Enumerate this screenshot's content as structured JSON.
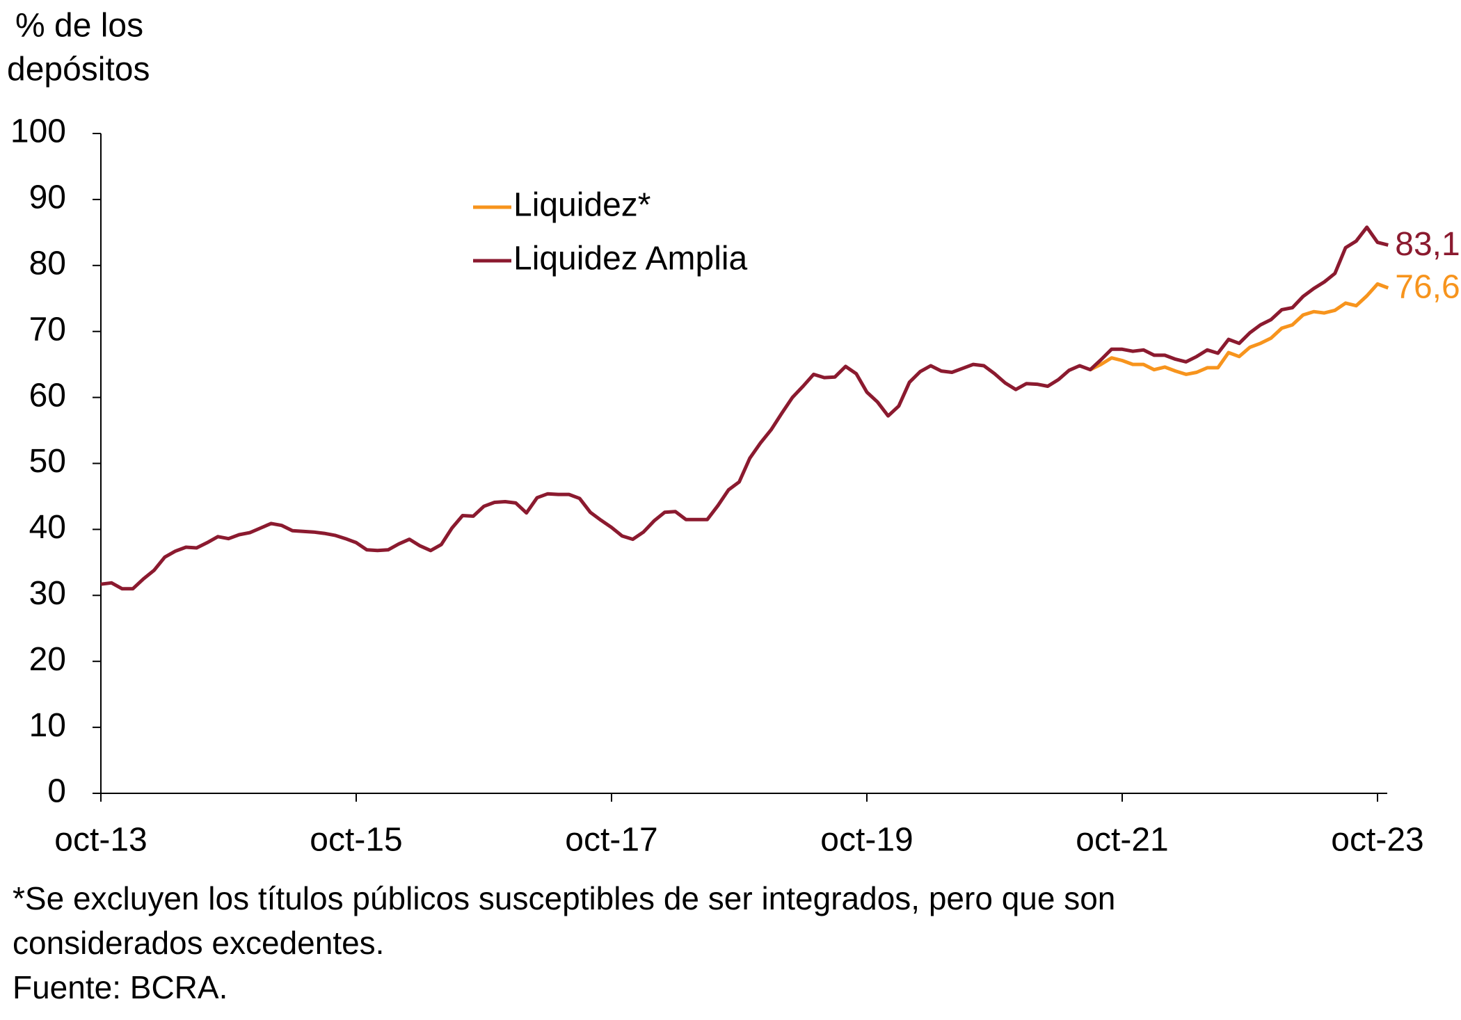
{
  "chart_data": {
    "type": "line",
    "ylabel": [
      "%  de los",
      "depósitos"
    ],
    "categories": [
      "oct-13",
      null,
      null,
      null,
      null,
      null,
      null,
      null,
      null,
      null,
      null,
      null,
      null,
      null,
      null,
      null,
      null,
      null,
      null,
      null,
      null,
      null,
      null,
      null,
      "oct-15",
      null,
      null,
      null,
      null,
      null,
      null,
      null,
      null,
      null,
      null,
      null,
      null,
      null,
      null,
      null,
      null,
      null,
      null,
      null,
      null,
      null,
      null,
      null,
      "oct-17",
      null,
      null,
      null,
      null,
      null,
      null,
      null,
      null,
      null,
      null,
      null,
      null,
      null,
      null,
      null,
      null,
      null,
      null,
      null,
      null,
      null,
      null,
      null,
      "oct-19",
      null,
      null,
      null,
      null,
      null,
      null,
      null,
      null,
      null,
      null,
      null,
      null,
      null,
      null,
      null,
      null,
      null,
      null,
      null,
      null,
      null,
      null,
      null,
      "oct-21",
      null,
      null,
      null,
      null,
      null,
      null,
      null,
      null,
      null,
      null,
      null,
      null,
      null,
      null,
      null,
      null,
      null,
      null,
      null,
      null,
      null,
      null,
      null,
      "oct-23",
      null
    ],
    "series": [
      {
        "name": "Liquidez*",
        "color": "#f7941d",
        "values": [
          null,
          null,
          null,
          null,
          null,
          null,
          null,
          null,
          null,
          null,
          null,
          null,
          null,
          null,
          null,
          null,
          null,
          null,
          null,
          null,
          null,
          null,
          null,
          null,
          null,
          null,
          null,
          null,
          null,
          null,
          null,
          null,
          null,
          null,
          null,
          null,
          null,
          null,
          null,
          null,
          null,
          null,
          null,
          null,
          null,
          null,
          null,
          null,
          null,
          null,
          null,
          null,
          null,
          null,
          null,
          null,
          null,
          null,
          null,
          null,
          null,
          null,
          null,
          null,
          null,
          null,
          null,
          null,
          null,
          null,
          null,
          null,
          null,
          null,
          null,
          null,
          null,
          null,
          null,
          null,
          null,
          null,
          null,
          null,
          null,
          null,
          null,
          null,
          null,
          null,
          null,
          null,
          null,
          64.2,
          65.0,
          66.0,
          65.6,
          65.0,
          65.0,
          64.2,
          64.6,
          64.0,
          63.5,
          63.8,
          64.5,
          64.5,
          66.8,
          66.2,
          67.6,
          68.2,
          69.0,
          70.5,
          71.0,
          72.5,
          73.0,
          72.8,
          73.2,
          74.3,
          73.9,
          75.4,
          77.2,
          76.6
        ],
        "value_labels": [
          null,
          null,
          null,
          null,
          null,
          null,
          null,
          null,
          null,
          null,
          null,
          null,
          null,
          null,
          null,
          null,
          null,
          null,
          null,
          null,
          null,
          null,
          null,
          null,
          null,
          null,
          null,
          null,
          null,
          null,
          null,
          null,
          null,
          null,
          null,
          null,
          null,
          null,
          null,
          null,
          null,
          null,
          null,
          null,
          null,
          null,
          null,
          null,
          null,
          null,
          null,
          null,
          null,
          null,
          null,
          null,
          null,
          null,
          null,
          null,
          null,
          null,
          null,
          null,
          null,
          null,
          null,
          null,
          null,
          null,
          null,
          null,
          null,
          null,
          null,
          null,
          null,
          null,
          null,
          null,
          null,
          null,
          null,
          null,
          null,
          null,
          null,
          null,
          null,
          null,
          null,
          null,
          null,
          null,
          null,
          null,
          null,
          null,
          null,
          null,
          null,
          null,
          null,
          null,
          null,
          null,
          null,
          null,
          null,
          null,
          null,
          null,
          null,
          null,
          null,
          null,
          null,
          null,
          null,
          null,
          null,
          "76,6"
        ]
      },
      {
        "name": "Liquidez Amplia",
        "color": "#8b1a2f",
        "values": [
          31.7,
          31.9,
          31.0,
          31.0,
          32.5,
          33.8,
          35.8,
          36.7,
          37.3,
          37.2,
          38.0,
          38.9,
          38.6,
          39.2,
          39.5,
          40.2,
          40.9,
          40.6,
          39.8,
          39.7,
          39.6,
          39.4,
          39.1,
          38.6,
          38.0,
          36.9,
          36.8,
          36.9,
          37.8,
          38.5,
          37.5,
          36.8,
          37.7,
          40.2,
          42.1,
          42.0,
          43.5,
          44.1,
          44.2,
          44.0,
          42.5,
          44.8,
          45.4,
          45.3,
          45.3,
          44.7,
          42.6,
          41.4,
          40.3,
          39.0,
          38.5,
          39.6,
          41.3,
          42.6,
          42.7,
          41.5,
          41.5,
          41.5,
          43.6,
          46.0,
          47.2,
          50.8,
          53.1,
          55.1,
          57.6,
          60.0,
          61.7,
          63.5,
          63.0,
          63.1,
          64.7,
          63.6,
          60.8,
          59.3,
          57.2,
          58.7,
          62.3,
          63.9,
          64.8,
          64.0,
          63.8,
          64.4,
          65.0,
          64.8,
          63.6,
          62.2,
          61.2,
          62.1,
          62.0,
          61.7,
          62.7,
          64.1,
          64.8,
          64.2,
          65.7,
          67.3,
          67.3,
          67.0,
          67.2,
          66.4,
          66.4,
          65.8,
          65.4,
          66.2,
          67.2,
          66.7,
          68.8,
          68.2,
          69.8,
          71.0,
          71.8,
          73.3,
          73.6,
          75.3,
          76.5,
          77.5,
          78.8,
          82.7,
          83.7,
          85.8,
          83.5,
          83.1
        ],
        "value_labels": [
          null,
          null,
          null,
          null,
          null,
          null,
          null,
          null,
          null,
          null,
          null,
          null,
          null,
          null,
          null,
          null,
          null,
          null,
          null,
          null,
          null,
          null,
          null,
          null,
          null,
          null,
          null,
          null,
          null,
          null,
          null,
          null,
          null,
          null,
          null,
          null,
          null,
          null,
          null,
          null,
          null,
          null,
          null,
          null,
          null,
          null,
          null,
          null,
          null,
          null,
          null,
          null,
          null,
          null,
          null,
          null,
          null,
          null,
          null,
          null,
          null,
          null,
          null,
          null,
          null,
          null,
          null,
          null,
          null,
          null,
          null,
          null,
          null,
          null,
          null,
          null,
          null,
          null,
          null,
          null,
          null,
          null,
          null,
          null,
          null,
          null,
          null,
          null,
          null,
          null,
          null,
          null,
          null,
          null,
          null,
          null,
          null,
          null,
          null,
          null,
          null,
          null,
          null,
          null,
          null,
          null,
          null,
          null,
          null,
          null,
          null,
          null,
          null,
          null,
          null,
          null,
          null,
          null,
          null,
          null,
          null,
          "83,1"
        ]
      }
    ],
    "ylim": [
      0,
      100
    ],
    "yticks": [
      0,
      10,
      20,
      30,
      40,
      50,
      60,
      70,
      80,
      90,
      100
    ],
    "notes": [
      "*Se excluyen los títulos públicos susceptibles de ser integrados, pero que son",
      "considerados excedentes.",
      "Fuente: BCRA."
    ]
  }
}
